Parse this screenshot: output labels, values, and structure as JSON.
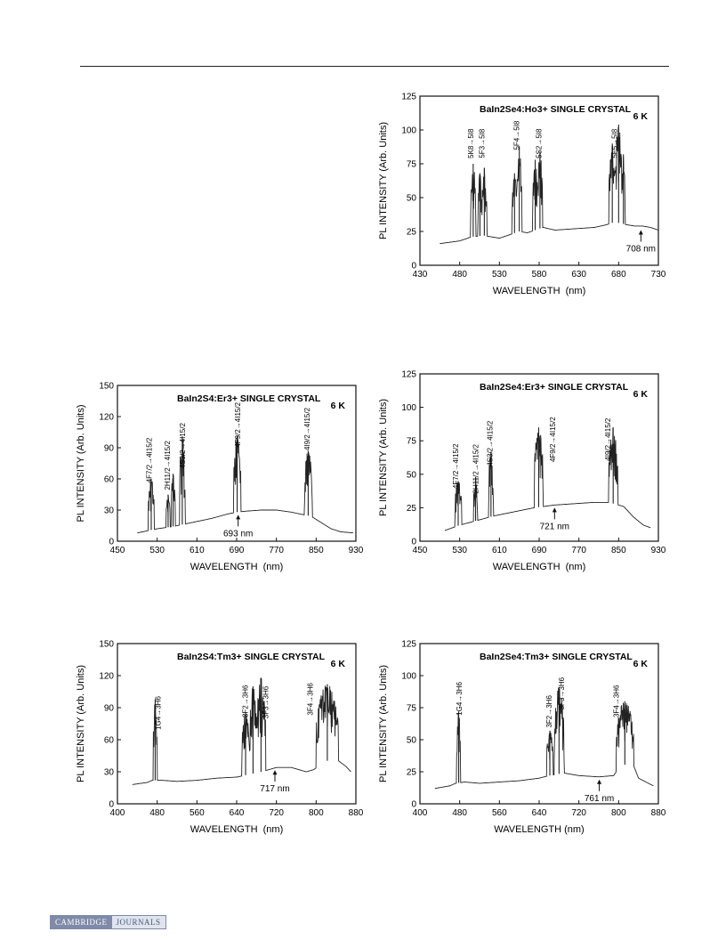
{
  "footer": {
    "logo_left": "CAMBRIDGE",
    "logo_right": "JOURNALS"
  },
  "chart_data": [
    {
      "type": "line",
      "title": "BaIn2Se4:Ho3+ SINGLE CRYSTAL",
      "temperature": "6 K",
      "xlabel": "WAVELENGTH  (nm)",
      "ylabel": "PL INTENSITY (Arb. Units)",
      "xlim": [
        430,
        730
      ],
      "ylim": [
        0,
        125
      ],
      "xticks": [
        430,
        480,
        530,
        580,
        630,
        680,
        730
      ],
      "yticks": [
        0,
        25,
        50,
        75,
        100,
        125
      ],
      "baseline": [
        [
          455,
          16
        ],
        [
          480,
          18
        ],
        [
          495,
          21
        ],
        [
          510,
          22
        ],
        [
          530,
          20
        ],
        [
          545,
          23
        ],
        [
          555,
          25
        ],
        [
          565,
          24
        ],
        [
          575,
          26
        ],
        [
          585,
          28
        ],
        [
          600,
          26
        ],
        [
          625,
          27
        ],
        [
          650,
          28
        ],
        [
          665,
          30
        ],
        [
          675,
          32
        ],
        [
          690,
          30
        ],
        [
          700,
          29
        ],
        [
          710,
          29
        ],
        [
          720,
          28
        ],
        [
          730,
          26
        ]
      ],
      "peaks": [
        {
          "from": 494,
          "to": 500,
          "max": 75
        },
        {
          "from": 503,
          "to": 508,
          "max": 68
        },
        {
          "from": 508,
          "to": 514,
          "max": 72
        },
        {
          "from": 546,
          "to": 552,
          "max": 68
        },
        {
          "from": 552,
          "to": 558,
          "max": 88
        },
        {
          "from": 572,
          "to": 578,
          "max": 78
        },
        {
          "from": 578,
          "to": 584,
          "max": 84
        },
        {
          "from": 668,
          "to": 676,
          "max": 90
        },
        {
          "from": 676,
          "to": 684,
          "max": 104
        },
        {
          "from": 684,
          "to": 688,
          "max": 82
        }
      ],
      "transitions": [
        {
          "label": "5K8→5I8",
          "x": 497,
          "y": 90
        },
        {
          "label": "5F3→5I8",
          "x": 511,
          "y": 90
        },
        {
          "label": "5F4→5I8",
          "x": 555,
          "y": 96
        },
        {
          "label": "5S2→5I8",
          "x": 583,
          "y": 90
        },
        {
          "label": "5F5→5I8",
          "x": 678,
          "y": 90
        }
      ],
      "annotation": {
        "text": "708 nm",
        "x": 708,
        "y": 28
      }
    },
    {
      "type": "line",
      "title": "BaIn2S4:Er3+ SINGLE CRYSTAL",
      "temperature": "6 K",
      "xlabel": "WAVELENGTH  (nm)",
      "ylabel": "PL INTENSITY (Arb. Units)",
      "xlim": [
        450,
        930
      ],
      "ylim": [
        0,
        150
      ],
      "xticks": [
        450,
        530,
        610,
        690,
        770,
        850,
        930
      ],
      "yticks": [
        0,
        30,
        60,
        90,
        120,
        150
      ],
      "baseline": [
        [
          490,
          8
        ],
        [
          510,
          10
        ],
        [
          530,
          12
        ],
        [
          560,
          14
        ],
        [
          600,
          18
        ],
        [
          640,
          22
        ],
        [
          670,
          26
        ],
        [
          690,
          28
        ],
        [
          710,
          29
        ],
        [
          740,
          30
        ],
        [
          770,
          30
        ],
        [
          800,
          28
        ],
        [
          820,
          26
        ],
        [
          840,
          24
        ],
        [
          860,
          18
        ],
        [
          880,
          12
        ],
        [
          900,
          9
        ],
        [
          925,
          8
        ]
      ],
      "peaks": [
        {
          "from": 512,
          "to": 524,
          "max": 60
        },
        {
          "from": 548,
          "to": 556,
          "max": 45
        },
        {
          "from": 558,
          "to": 566,
          "max": 65
        },
        {
          "from": 575,
          "to": 586,
          "max": 101
        },
        {
          "from": 684,
          "to": 698,
          "max": 101
        },
        {
          "from": 826,
          "to": 842,
          "max": 87
        }
      ],
      "transitions": [
        {
          "label": "4F7/2→4I15/2",
          "x": 519,
          "y": 78
        },
        {
          "label": "2H11/2→4I15/2",
          "x": 556,
          "y": 73
        },
        {
          "label": "4S3/2→4I15/2",
          "x": 586,
          "y": 92
        },
        {
          "label": "4F9/2→4I15/2",
          "x": 697,
          "y": 112
        },
        {
          "label": "4I9/2→4I15/2",
          "x": 837,
          "y": 108
        }
      ],
      "annotation": {
        "text": "693 nm",
        "x": 693,
        "y": 28
      }
    },
    {
      "type": "line",
      "title": "BaIn2Se4:Er3+ SINGLE CRYSTAL",
      "temperature": "6 K",
      "xlabel": "WAVELENGTH  (nm)",
      "ylabel": "PL INTENSITY (Arb. Units)",
      "xlim": [
        450,
        930
      ],
      "ylim": [
        0,
        125
      ],
      "xticks": [
        450,
        530,
        610,
        690,
        770,
        850,
        930
      ],
      "yticks": [
        0,
        25,
        50,
        75,
        100,
        125
      ],
      "baseline": [
        [
          500,
          8
        ],
        [
          515,
          10
        ],
        [
          530,
          12
        ],
        [
          560,
          15
        ],
        [
          600,
          19
        ],
        [
          640,
          22
        ],
        [
          680,
          25
        ],
        [
          700,
          26
        ],
        [
          720,
          27
        ],
        [
          760,
          28
        ],
        [
          800,
          29
        ],
        [
          830,
          29
        ],
        [
          860,
          26
        ],
        [
          880,
          18
        ],
        [
          900,
          12
        ],
        [
          915,
          10
        ]
      ],
      "peaks": [
        {
          "from": 520,
          "to": 534,
          "max": 45
        },
        {
          "from": 558,
          "to": 566,
          "max": 48
        },
        {
          "from": 588,
          "to": 598,
          "max": 67
        },
        {
          "from": 680,
          "to": 698,
          "max": 85
        },
        {
          "from": 830,
          "to": 848,
          "max": 85
        }
      ],
      "transitions": [
        {
          "label": "4F7/2→4I15/2",
          "x": 527,
          "y": 56
        },
        {
          "label": "2H11/2→4I15/2",
          "x": 567,
          "y": 54
        },
        {
          "label": "4S3/2→4I15/2",
          "x": 596,
          "y": 73
        },
        {
          "label": "4F9/2→4I15/2",
          "x": 722,
          "y": 76
        },
        {
          "label": "4I9/2→4I15/2",
          "x": 833,
          "y": 76
        }
      ],
      "annotation": {
        "text": "721 nm",
        "x": 721,
        "y": 27
      }
    },
    {
      "type": "line",
      "title": "BaIn2S4:Tm3+ SINGLE CRYSTAL",
      "temperature": "6 K",
      "xlabel": "WAVELENGTH  (nm)",
      "ylabel": "PL INTENSITY (Arb. Units)",
      "xlim": [
        400,
        880
      ],
      "ylim": [
        0,
        150
      ],
      "xticks": [
        400,
        480,
        560,
        640,
        720,
        800,
        880
      ],
      "yticks": [
        0,
        30,
        60,
        90,
        120,
        150
      ],
      "baseline": [
        [
          430,
          18
        ],
        [
          460,
          20
        ],
        [
          470,
          22
        ],
        [
          490,
          22
        ],
        [
          520,
          21
        ],
        [
          560,
          22
        ],
        [
          600,
          24
        ],
        [
          640,
          25
        ],
        [
          660,
          27
        ],
        [
          690,
          30
        ],
        [
          720,
          34
        ],
        [
          750,
          34
        ],
        [
          780,
          30
        ],
        [
          795,
          32
        ],
        [
          820,
          40
        ],
        [
          840,
          42
        ],
        [
          860,
          35
        ],
        [
          870,
          30
        ]
      ],
      "peaks": [
        {
          "from": 472,
          "to": 480,
          "max": 98
        },
        {
          "from": 650,
          "to": 666,
          "max": 85
        },
        {
          "from": 666,
          "to": 680,
          "max": 110
        },
        {
          "from": 680,
          "to": 698,
          "max": 118
        },
        {
          "from": 800,
          "to": 845,
          "max": 112
        }
      ],
      "transitions": [
        {
          "label": "1G4→3H6",
          "x": 487,
          "y": 85
        },
        {
          "label": "3F2→3H6",
          "x": 662,
          "y": 96
        },
        {
          "label": "3F3→3H6",
          "x": 704,
          "y": 95
        },
        {
          "label": "3F4→3H6",
          "x": 793,
          "y": 98
        }
      ],
      "annotation": {
        "text": "717 nm",
        "x": 717,
        "y": 34
      }
    },
    {
      "type": "line",
      "title": "BaIn2Se4:Tm3+ SINGLE CRYSTAL",
      "temperature": "6 K",
      "xlabel": "WAVELENGTH (nm)",
      "ylabel": "PL INTENSITY (Arb. Units)",
      "xlim": [
        400,
        880
      ],
      "ylim": [
        0,
        125
      ],
      "xticks": [
        400,
        480,
        560,
        640,
        720,
        800,
        880
      ],
      "yticks": [
        0,
        25,
        50,
        75,
        100,
        125
      ],
      "baseline": [
        [
          430,
          12
        ],
        [
          460,
          14
        ],
        [
          472,
          16
        ],
        [
          490,
          17
        ],
        [
          520,
          16
        ],
        [
          560,
          17
        ],
        [
          600,
          18
        ],
        [
          640,
          20
        ],
        [
          660,
          22
        ],
        [
          690,
          24
        ],
        [
          720,
          22
        ],
        [
          760,
          21
        ],
        [
          790,
          22
        ],
        [
          800,
          28
        ],
        [
          820,
          32
        ],
        [
          830,
          30
        ],
        [
          840,
          20
        ],
        [
          860,
          16
        ],
        [
          870,
          14
        ]
      ],
      "peaks": [
        {
          "from": 474,
          "to": 482,
          "max": 72
        },
        {
          "from": 655,
          "to": 668,
          "max": 57
        },
        {
          "from": 670,
          "to": 690,
          "max": 91
        },
        {
          "from": 795,
          "to": 830,
          "max": 80
        }
      ],
      "transitions": [
        {
          "label": "1G4→3H6",
          "x": 484,
          "y": 82
        },
        {
          "label": "3F2→3H6",
          "x": 665,
          "y": 72
        },
        {
          "label": "3F3→3H6",
          "x": 690,
          "y": 86
        },
        {
          "label": "3F4→3H6",
          "x": 800,
          "y": 80
        }
      ],
      "annotation": {
        "text": "761 nm",
        "x": 761,
        "y": 21
      }
    }
  ]
}
